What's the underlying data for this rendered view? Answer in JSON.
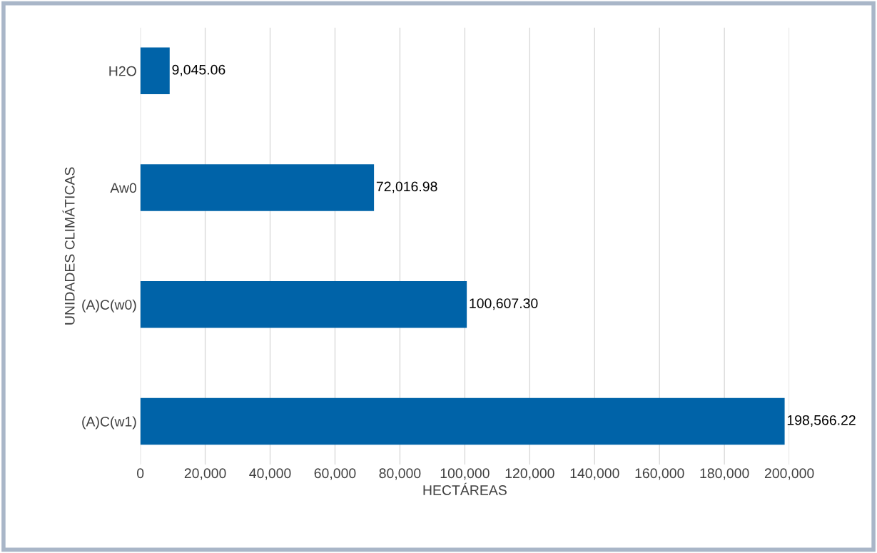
{
  "chart_data": {
    "type": "bar",
    "orientation": "horizontal",
    "xlabel": "HECTÁREAS",
    "ylabel": "UNIDADES CLIMÁTICAS",
    "categories": [
      "H2O",
      "Aw0",
      "(A)C(w0)",
      "(A)C(w1)"
    ],
    "values": [
      9045.06,
      72016.98,
      100607.3,
      198566.22
    ],
    "value_labels": [
      "9,045.06",
      "72,016.98",
      "100,607.30",
      "198,566.22"
    ],
    "color": "#0063a8",
    "xlim": [
      0,
      200000
    ],
    "xticks": [
      {
        "value": 0,
        "label": "0"
      },
      {
        "value": 20000,
        "label": "20,000"
      },
      {
        "value": 40000,
        "label": "40,000"
      },
      {
        "value": 60000,
        "label": "60,000"
      },
      {
        "value": 80000,
        "label": "80,000"
      },
      {
        "value": 100000,
        "label": "100,000"
      },
      {
        "value": 120000,
        "label": "120,000"
      },
      {
        "value": 140000,
        "label": "140,000"
      },
      {
        "value": 160000,
        "label": "160,000"
      },
      {
        "value": 180000,
        "label": "180,000"
      },
      {
        "value": 200000,
        "label": "200,000"
      }
    ],
    "grid": "x",
    "legend": false
  }
}
